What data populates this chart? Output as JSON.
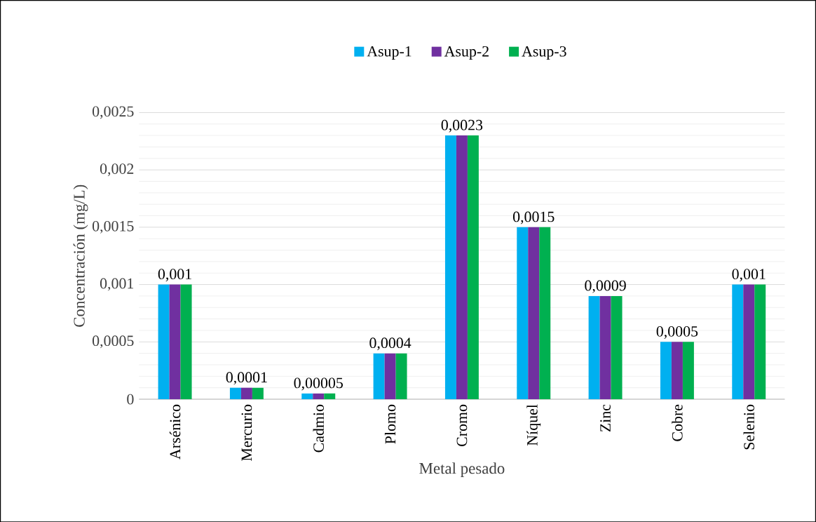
{
  "chart_data": {
    "type": "bar",
    "xlabel": "Metal pesado",
    "ylabel": "Concentración (mg/L)",
    "categories": [
      "Arsénico",
      "Mercurio",
      "Cadmio",
      "Plomo",
      "Cromo",
      "Níquel",
      "Zinc",
      "Cobre",
      "Selenio"
    ],
    "series": [
      {
        "name": "Asup-1",
        "color": "#00b0f0",
        "values": [
          0.001,
          0.0001,
          5e-05,
          0.0004,
          0.0023,
          0.0015,
          0.0009,
          0.0005,
          0.001
        ]
      },
      {
        "name": "Asup-2",
        "color": "#7030a0",
        "values": [
          0.001,
          0.0001,
          5e-05,
          0.0004,
          0.0023,
          0.0015,
          0.0009,
          0.0005,
          0.001
        ],
        "value_labels": [
          "0,001",
          "0,0001",
          "0,00005",
          "0,0004",
          "0,0023",
          "0,0015",
          "0,0009",
          "0,0005",
          "0,001"
        ]
      },
      {
        "name": "Asup-3",
        "color": "#00b050",
        "values": [
          0.001,
          0.0001,
          5e-05,
          0.0004,
          0.0023,
          0.0015,
          0.0009,
          0.0005,
          0.001
        ]
      }
    ],
    "ylim": [
      0,
      0.0025
    ],
    "yticks": [
      0,
      {
        "value": 0.0005,
        "label": "0,0005"
      },
      {
        "value": 0.001,
        "label": "0,001"
      },
      {
        "value": 0.0015,
        "label": "0,0015"
      },
      {
        "value": 0.002,
        "label": "0,002"
      },
      {
        "value": 0.0025,
        "label": "0,0025"
      }
    ],
    "grid": "y",
    "legend": "top"
  }
}
